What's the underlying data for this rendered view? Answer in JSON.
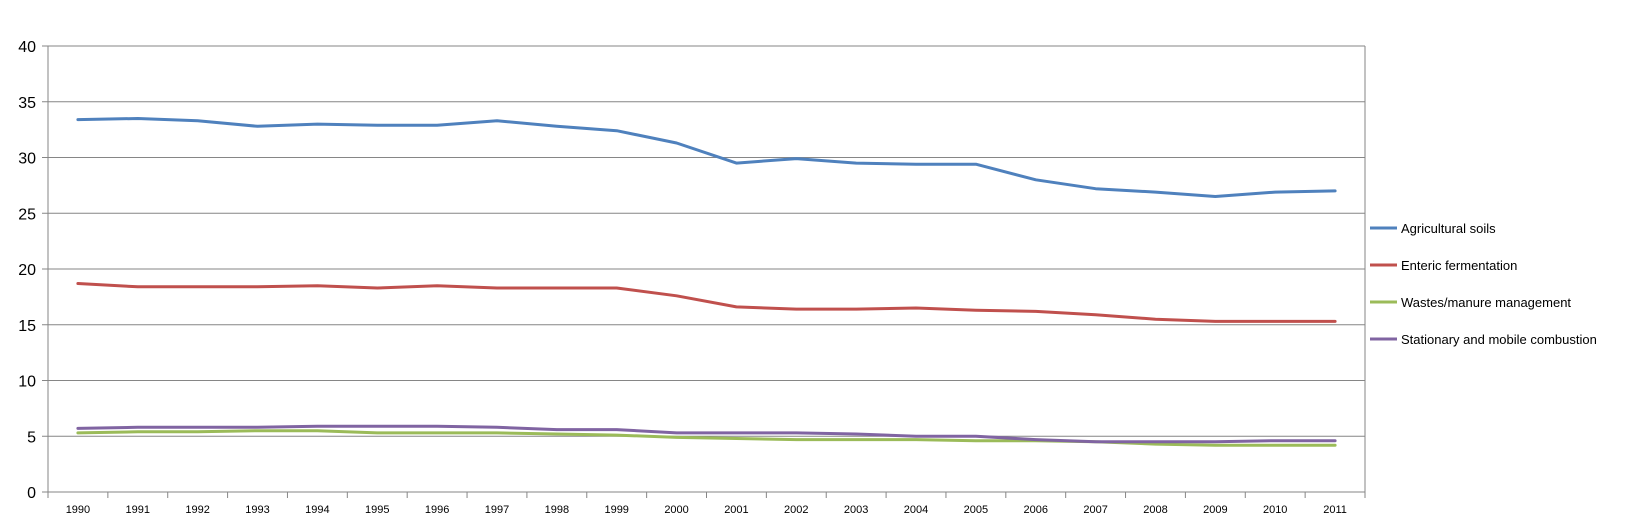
{
  "chart_data": {
    "type": "line",
    "title": "",
    "xlabel": "",
    "ylabel": "",
    "ylim": [
      0,
      40
    ],
    "yticks": [
      0,
      5,
      10,
      15,
      20,
      25,
      30,
      35,
      40
    ],
    "grid": "horizontal",
    "legend_placement": "right",
    "categories": [
      "1990",
      "1991",
      "1992",
      "1993",
      "1994",
      "1995",
      "1996",
      "1997",
      "1998",
      "1999",
      "2000",
      "2001",
      "2002",
      "2003",
      "2004",
      "2005",
      "2006",
      "2007",
      "2008",
      "2009",
      "2010",
      "2011"
    ],
    "series": [
      {
        "name": "Agricultural soils",
        "color": "#4F81BD",
        "values": [
          33.4,
          33.5,
          33.3,
          32.8,
          33.0,
          32.9,
          32.9,
          33.3,
          32.8,
          32.4,
          31.3,
          29.5,
          29.9,
          29.5,
          29.4,
          29.4,
          28.0,
          27.2,
          26.9,
          26.5,
          26.9,
          27.0
        ]
      },
      {
        "name": "Enteric fermentation",
        "color": "#C0504D",
        "values": [
          18.7,
          18.4,
          18.4,
          18.4,
          18.5,
          18.3,
          18.5,
          18.3,
          18.3,
          18.3,
          17.6,
          16.6,
          16.4,
          16.4,
          16.5,
          16.3,
          16.2,
          15.9,
          15.5,
          15.3,
          15.3,
          15.3
        ]
      },
      {
        "name": "Wastes/manure management",
        "color": "#9BBB59",
        "values": [
          5.3,
          5.4,
          5.4,
          5.5,
          5.5,
          5.3,
          5.3,
          5.3,
          5.2,
          5.1,
          4.9,
          4.8,
          4.7,
          4.7,
          4.7,
          4.6,
          4.6,
          4.5,
          4.3,
          4.2,
          4.2,
          4.2
        ]
      },
      {
        "name": "Stationary and mobile combustion",
        "color": "#8064A2",
        "values": [
          5.7,
          5.8,
          5.8,
          5.8,
          5.9,
          5.9,
          5.9,
          5.8,
          5.6,
          5.6,
          5.3,
          5.3,
          5.3,
          5.2,
          5.0,
          5.0,
          4.7,
          4.5,
          4.5,
          4.5,
          4.6,
          4.6
        ]
      }
    ]
  }
}
